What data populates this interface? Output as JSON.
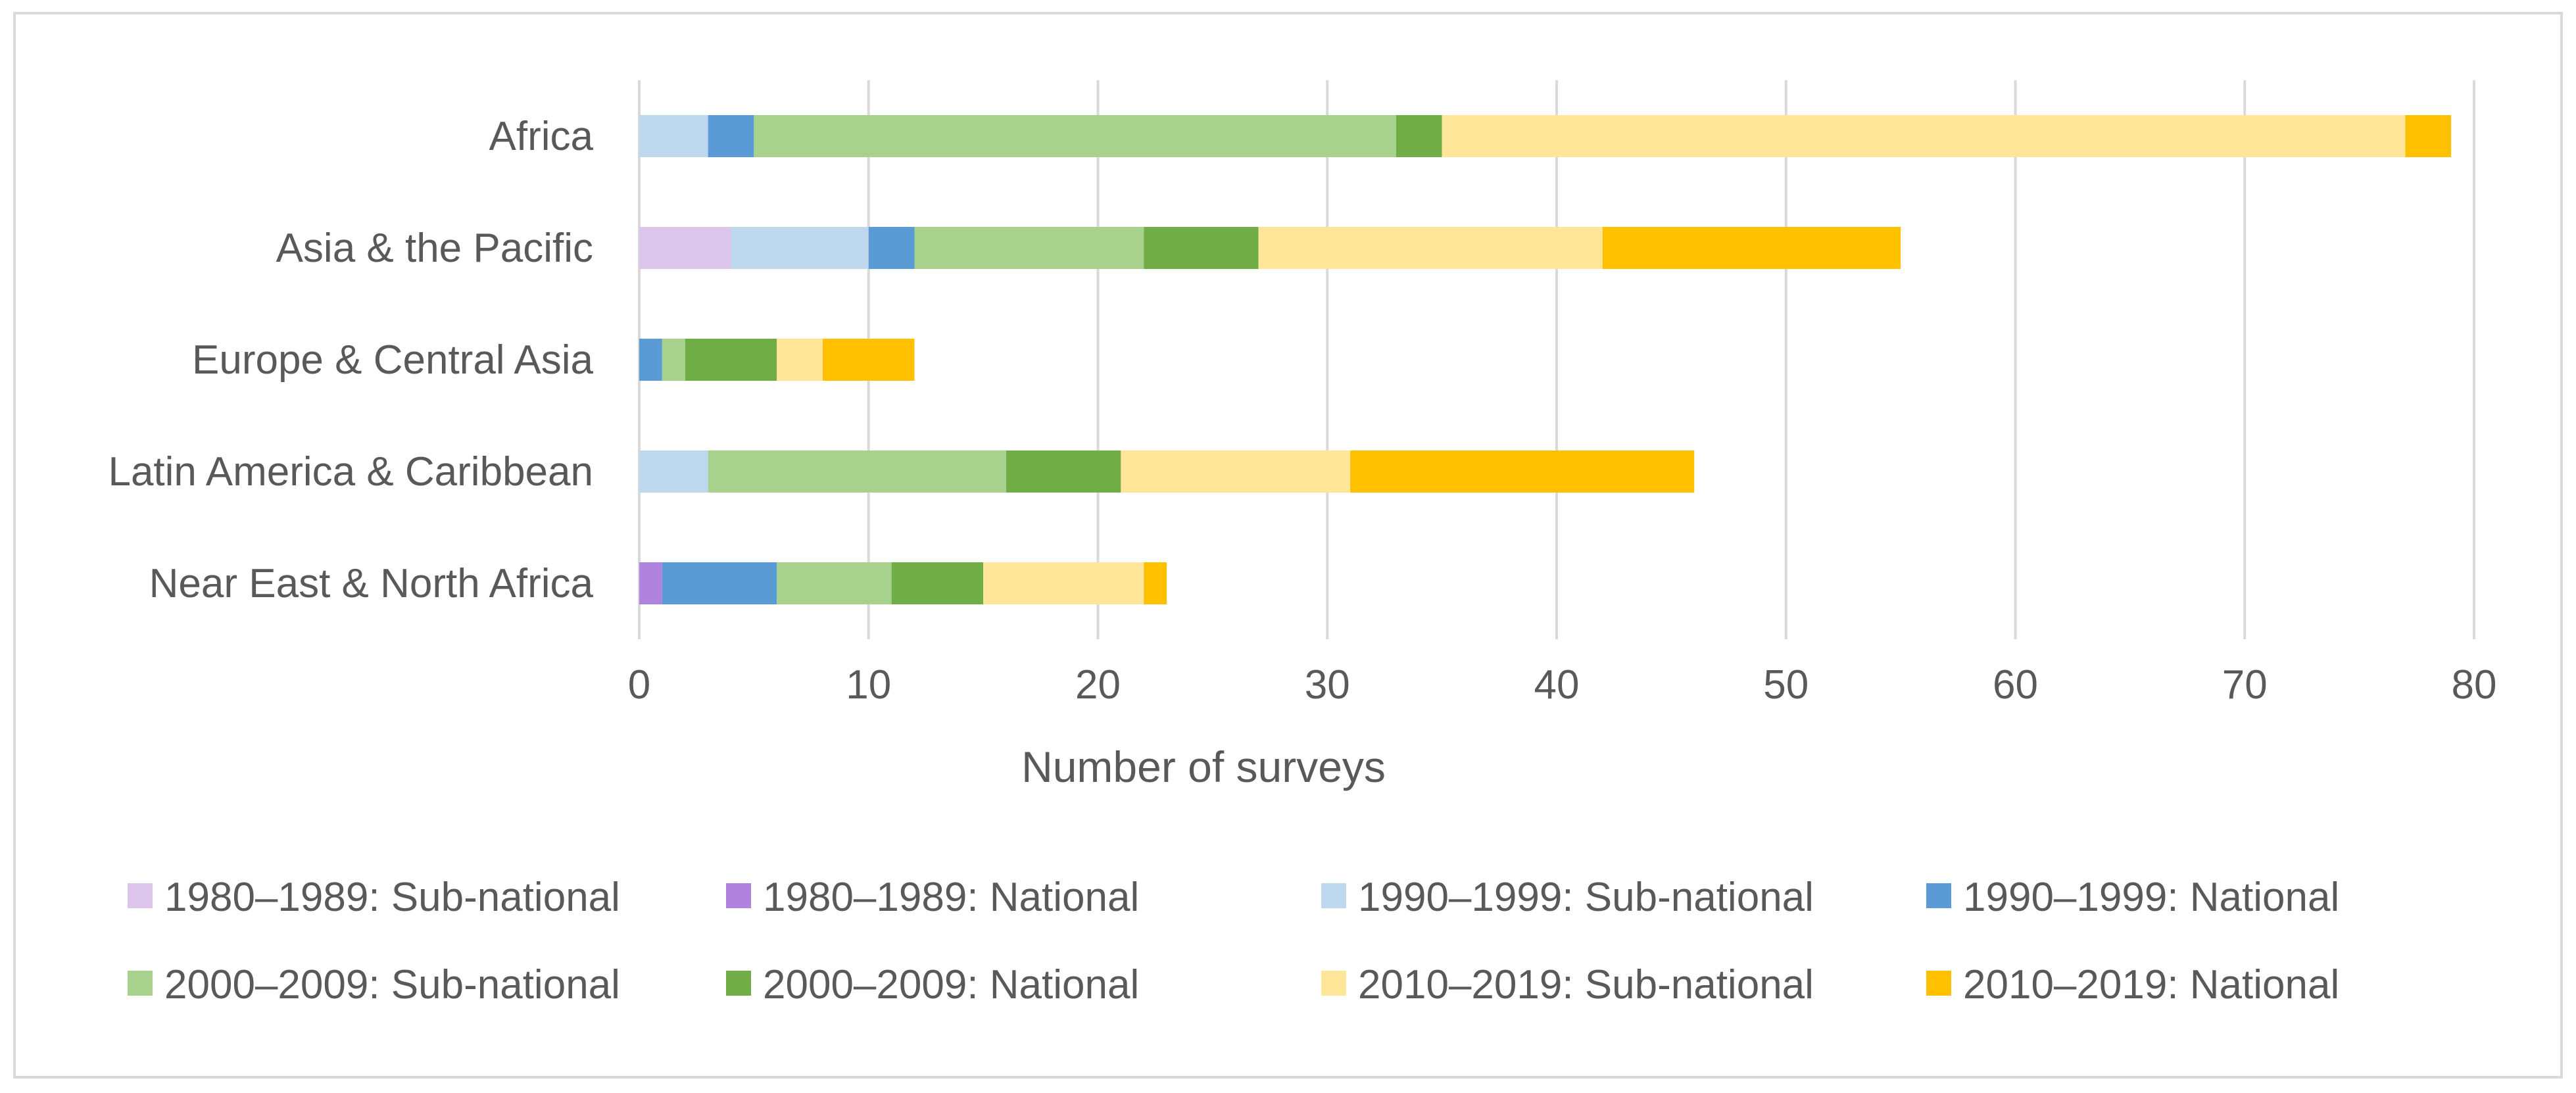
{
  "chart_data": {
    "type": "bar",
    "orientation": "horizontal",
    "stacked": true,
    "categories": [
      "Africa",
      "Asia & the Pacific",
      "Europe & Central Asia",
      "Latin America & Caribbean",
      "Near East & North Africa"
    ],
    "series": [
      {
        "name": "1980–1989: Sub-national",
        "color": "#dcc5ec",
        "values": [
          0,
          4,
          0,
          0,
          0
        ]
      },
      {
        "name": "1980–1989: National",
        "color": "#b084de",
        "values": [
          0,
          0,
          0,
          0,
          1
        ]
      },
      {
        "name": "1990–1999: Sub-national",
        "color": "#bdd7ee",
        "values": [
          3,
          6,
          0,
          3,
          0
        ]
      },
      {
        "name": "1990–1999: National",
        "color": "#5b9bd5",
        "values": [
          2,
          2,
          1,
          0,
          5
        ]
      },
      {
        "name": "2000–2009: Sub-national",
        "color": "#a9d18e",
        "values": [
          28,
          10,
          1,
          13,
          5
        ]
      },
      {
        "name": "2000–2009: National",
        "color": "#70ad47",
        "values": [
          2,
          5,
          4,
          5,
          4
        ]
      },
      {
        "name": "2010–2019: Sub-national",
        "color": "#ffe699",
        "values": [
          42,
          15,
          2,
          10,
          7
        ]
      },
      {
        "name": "2010–2019: National",
        "color": "#ffc000",
        "values": [
          2,
          13,
          4,
          15,
          1
        ]
      }
    ],
    "xlabel": "Number of surveys",
    "ylabel": "",
    "title": "",
    "xlim": [
      0,
      80
    ],
    "xticks": [
      0,
      10,
      20,
      30,
      40,
      50,
      60,
      70,
      80
    ],
    "grid": "vertical",
    "legend_position": "bottom"
  }
}
